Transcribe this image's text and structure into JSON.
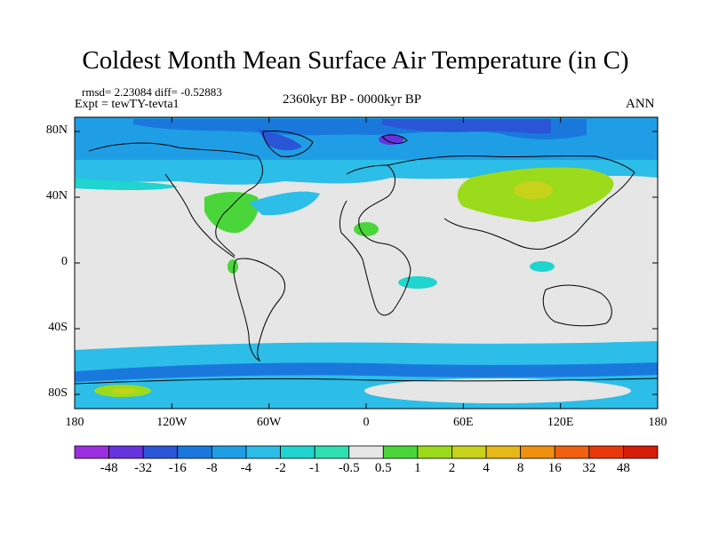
{
  "title": "Coldest Month Mean Surface Air Temperature (in C)",
  "stats": "rmsd= 2.23084 diff= -0.52883",
  "experiment": "Expt = tewTY-tevta1",
  "period": "2360kyr BP - 0000kyr BP",
  "season": "ANN",
  "y_axis_labels": [
    "80N",
    "40N",
    "0",
    "40S",
    "80S"
  ],
  "x_axis_labels": [
    "180",
    "120W",
    "60W",
    "0",
    "60E",
    "120E",
    "180"
  ],
  "colorbar": {
    "labels": [
      "-48",
      "-32",
      "-16",
      "-8",
      "-4",
      "-2",
      "-1",
      "-0.5",
      "0.5",
      "1",
      "2",
      "4",
      "8",
      "16",
      "32",
      "48"
    ],
    "colors": [
      "#9b2fe0",
      "#6633dd",
      "#2a55d6",
      "#1a78dd",
      "#1f9ee6",
      "#2cbde8",
      "#20d4cf",
      "#2ee0b0",
      "#e6e6e6",
      "#4ad63a",
      "#9bdb1c",
      "#c8d21a",
      "#e6b818",
      "#ef9010",
      "#f06010",
      "#e8380c",
      "#d41c08"
    ]
  },
  "map_colors": {
    "neutral": "#e6e6e6",
    "light_cyan": "#2cbde8",
    "cyan": "#1f9ee6",
    "blue": "#1a78dd",
    "dark_blue": "#2a55d6",
    "violet": "#6633dd",
    "green": "#4ad63a",
    "yellow_green": "#9bdb1c",
    "olive": "#c8d21a",
    "teal": "#20d4cf",
    "coast": "#000000"
  }
}
